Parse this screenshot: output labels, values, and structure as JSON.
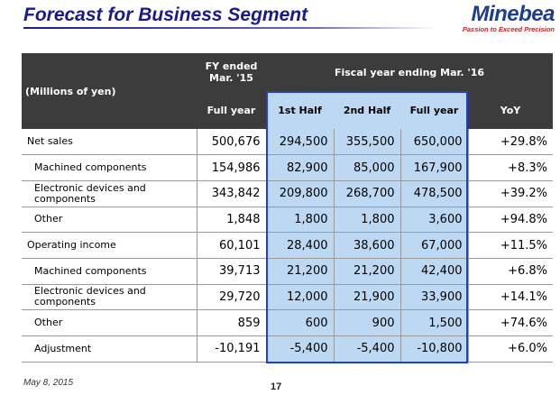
{
  "title": "Forecast for Business Segment",
  "logo": {
    "name": "Minebea",
    "tagline": "Passion to Exceed Precision"
  },
  "header": {
    "units": "(Millions of yen)",
    "fy_prev": "FY ended\nMar. '15",
    "fy_next": "Fiscal year ending Mar. '16",
    "cols": [
      "Full year",
      "1st Half",
      "2nd Half",
      "Full year",
      "YoY"
    ]
  },
  "rows": [
    {
      "label": "Net sales",
      "values": [
        "500,676",
        "294,500",
        "355,500",
        "650,000",
        "+29.8%"
      ]
    },
    {
      "label": "Machined components",
      "values": [
        "154,986",
        "82,900",
        "85,000",
        "167,900",
        "+8.3%"
      ]
    },
    {
      "label": "Electronic devices and components",
      "values": [
        "343,842",
        "209,800",
        "268,700",
        "478,500",
        "+39.2%"
      ]
    },
    {
      "label": "Other",
      "values": [
        "1,848",
        "1,800",
        "1,800",
        "3,600",
        "+94.8%"
      ]
    },
    {
      "label": "Operating income",
      "values": [
        "60,101",
        "28,400",
        "38,600",
        "67,000",
        "+11.5%"
      ]
    },
    {
      "label": "Machined components",
      "values": [
        "39,713",
        "21,200",
        "21,200",
        "42,400",
        "+6.8%"
      ]
    },
    {
      "label": "Electronic devices and components",
      "values": [
        "29,720",
        "12,000",
        "21,900",
        "33,900",
        "+14.1%"
      ]
    },
    {
      "label": "Other",
      "values": [
        "859",
        "600",
        "900",
        "1,500",
        "+74.6%"
      ]
    },
    {
      "label": "Adjustment",
      "values": [
        "-10,191",
        "-5,400",
        "-5,400",
        "-10,800",
        "+6.0%"
      ]
    }
  ],
  "footer": {
    "date": "May 8, 2015",
    "page": "17"
  }
}
